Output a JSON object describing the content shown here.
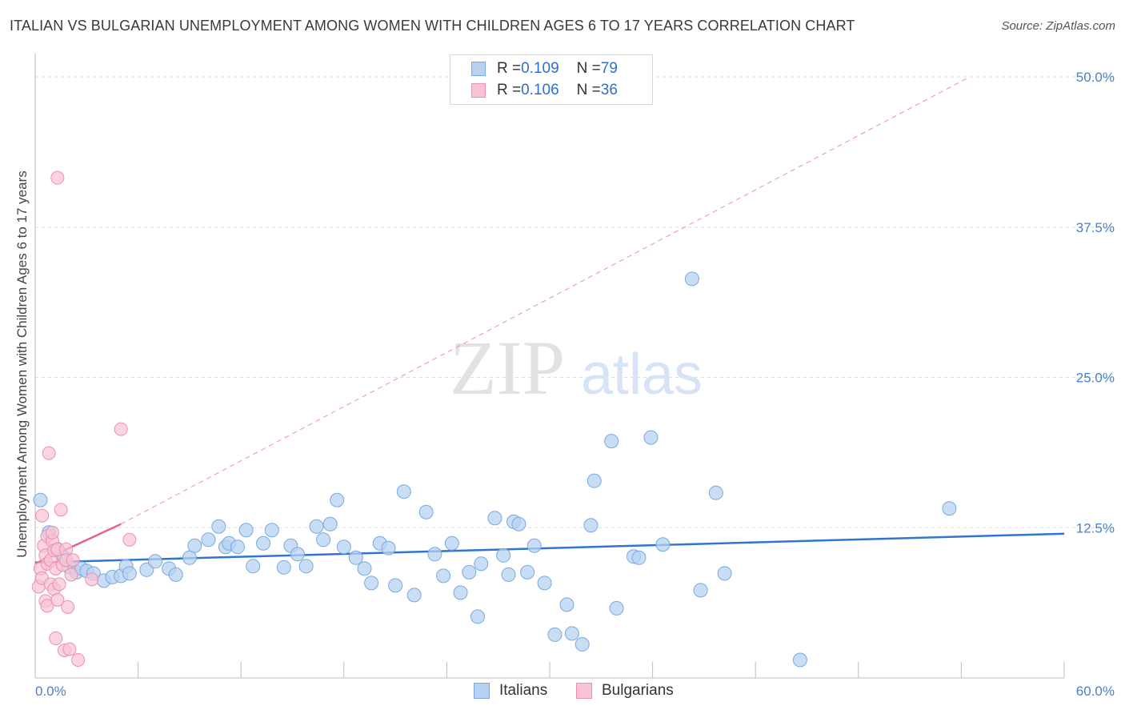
{
  "title": "ITALIAN VS BULGARIAN UNEMPLOYMENT AMONG WOMEN WITH CHILDREN AGES 6 TO 17 YEARS CORRELATION CHART",
  "source": "Source: ZipAtlas.com",
  "watermark": {
    "zip": "ZIP",
    "atlas": "atlas"
  },
  "legend": {
    "italians": {
      "r_label": "R = ",
      "r": "0.109",
      "n_label": "N = ",
      "n": "79"
    },
    "bulgarians": {
      "r_label": "R = ",
      "r": "0.106",
      "n_label": "N = ",
      "n": "36"
    }
  },
  "bottom_legend": {
    "italians": "Italians",
    "bulgarians": "Bulgarians"
  },
  "colors": {
    "italians_fill": "#b7d2f0",
    "italians_stroke": "#7aa9e0",
    "italians_line": "#2f75d1",
    "bulgarians_fill": "#f8c3d4",
    "bulgarians_stroke": "#ee8fae",
    "bulgarians_line": "#e36490"
  },
  "chart_data": {
    "type": "scatter",
    "title": "ITALIAN VS BULGARIAN UNEMPLOYMENT AMONG WOMEN WITH CHILDREN AGES 6 TO 17 YEARS CORRELATION CHART",
    "xlabel": "",
    "ylabel": "Unemployment Among Women with Children Ages 6 to 17 years",
    "xlim": [
      0,
      60
    ],
    "ylim": [
      0,
      50
    ],
    "x_tick_labels": [
      "0.0%",
      "60.0%"
    ],
    "y_ticks": [
      12.5,
      25,
      37.5,
      50
    ],
    "y_tick_labels": [
      "12.5%",
      "25.0%",
      "37.5%",
      "50.0%"
    ],
    "series": [
      {
        "name": "Italians",
        "points": [
          [
            0.3,
            14.8
          ],
          [
            0.8,
            12.1
          ],
          [
            1.3,
            10.7
          ],
          [
            1.7,
            10.0
          ],
          [
            2.0,
            9.2
          ],
          [
            2.4,
            8.8
          ],
          [
            2.7,
            9.1
          ],
          [
            3.0,
            8.9
          ],
          [
            3.4,
            8.7
          ],
          [
            4.0,
            8.1
          ],
          [
            4.5,
            8.4
          ],
          [
            5.0,
            8.5
          ],
          [
            5.3,
            9.3
          ],
          [
            5.5,
            8.7
          ],
          [
            6.5,
            9.0
          ],
          [
            7.0,
            9.7
          ],
          [
            7.8,
            9.1
          ],
          [
            8.2,
            8.6
          ],
          [
            9.0,
            10.0
          ],
          [
            9.3,
            11.0
          ],
          [
            10.1,
            11.5
          ],
          [
            10.7,
            12.6
          ],
          [
            11.1,
            10.9
          ],
          [
            11.3,
            11.2
          ],
          [
            11.8,
            10.9
          ],
          [
            12.3,
            12.3
          ],
          [
            12.7,
            9.3
          ],
          [
            13.3,
            11.2
          ],
          [
            13.8,
            12.3
          ],
          [
            14.5,
            9.2
          ],
          [
            14.9,
            11.0
          ],
          [
            15.3,
            10.3
          ],
          [
            15.8,
            9.3
          ],
          [
            16.4,
            12.6
          ],
          [
            16.8,
            11.5
          ],
          [
            17.2,
            12.8
          ],
          [
            17.6,
            14.8
          ],
          [
            18.0,
            10.9
          ],
          [
            18.7,
            10.0
          ],
          [
            19.2,
            9.1
          ],
          [
            19.6,
            7.9
          ],
          [
            20.1,
            11.2
          ],
          [
            20.6,
            10.8
          ],
          [
            21.0,
            7.7
          ],
          [
            21.5,
            15.5
          ],
          [
            22.1,
            6.9
          ],
          [
            22.8,
            13.8
          ],
          [
            23.3,
            10.3
          ],
          [
            23.8,
            8.5
          ],
          [
            24.3,
            11.2
          ],
          [
            24.8,
            7.1
          ],
          [
            25.3,
            8.8
          ],
          [
            25.8,
            5.1
          ],
          [
            26.0,
            9.5
          ],
          [
            26.8,
            13.3
          ],
          [
            27.3,
            10.2
          ],
          [
            27.6,
            8.6
          ],
          [
            27.9,
            13.0
          ],
          [
            28.2,
            12.8
          ],
          [
            28.7,
            8.8
          ],
          [
            29.1,
            11.0
          ],
          [
            29.7,
            7.9
          ],
          [
            30.3,
            3.6
          ],
          [
            31.0,
            6.1
          ],
          [
            31.3,
            3.7
          ],
          [
            31.9,
            2.8
          ],
          [
            32.4,
            12.7
          ],
          [
            32.6,
            16.4
          ],
          [
            33.6,
            19.7
          ],
          [
            33.9,
            5.8
          ],
          [
            34.9,
            10.1
          ],
          [
            35.2,
            10.0
          ],
          [
            35.9,
            20.0
          ],
          [
            36.6,
            11.1
          ],
          [
            38.3,
            33.2
          ],
          [
            38.8,
            7.3
          ],
          [
            39.7,
            15.4
          ],
          [
            40.2,
            8.7
          ],
          [
            44.6,
            1.5
          ],
          [
            53.3,
            14.1
          ]
        ],
        "trend": {
          "x": [
            0,
            60
          ],
          "y": [
            9.6,
            12.0
          ]
        }
      },
      {
        "name": "Bulgarians",
        "points": [
          [
            0.2,
            7.6
          ],
          [
            0.3,
            9.1
          ],
          [
            0.4,
            8.3
          ],
          [
            0.4,
            13.5
          ],
          [
            0.5,
            11.0
          ],
          [
            0.6,
            6.4
          ],
          [
            0.6,
            10.2
          ],
          [
            0.7,
            6.0
          ],
          [
            0.7,
            9.5
          ],
          [
            0.7,
            11.8
          ],
          [
            0.8,
            18.7
          ],
          [
            0.9,
            7.8
          ],
          [
            0.9,
            9.8
          ],
          [
            1.0,
            11.4
          ],
          [
            1.0,
            12.1
          ],
          [
            1.1,
            7.4
          ],
          [
            1.1,
            10.6
          ],
          [
            1.2,
            9.1
          ],
          [
            1.2,
            3.3
          ],
          [
            1.3,
            6.5
          ],
          [
            1.3,
            10.7
          ],
          [
            1.3,
            41.6
          ],
          [
            1.4,
            7.8
          ],
          [
            1.5,
            14.0
          ],
          [
            1.6,
            9.4
          ],
          [
            1.7,
            2.3
          ],
          [
            1.8,
            10.7
          ],
          [
            1.8,
            9.8
          ],
          [
            1.9,
            5.9
          ],
          [
            2.0,
            2.4
          ],
          [
            2.1,
            8.6
          ],
          [
            2.2,
            9.8
          ],
          [
            2.5,
            1.5
          ],
          [
            3.3,
            8.2
          ],
          [
            5.0,
            20.7
          ],
          [
            5.5,
            11.5
          ]
        ],
        "trend": {
          "x": [
            0,
            5.0
          ],
          "y": [
            9.5,
            12.8
          ]
        },
        "trend_extended": {
          "x": [
            5.0,
            54.5
          ],
          "y": [
            12.8,
            50.0
          ]
        }
      }
    ]
  }
}
